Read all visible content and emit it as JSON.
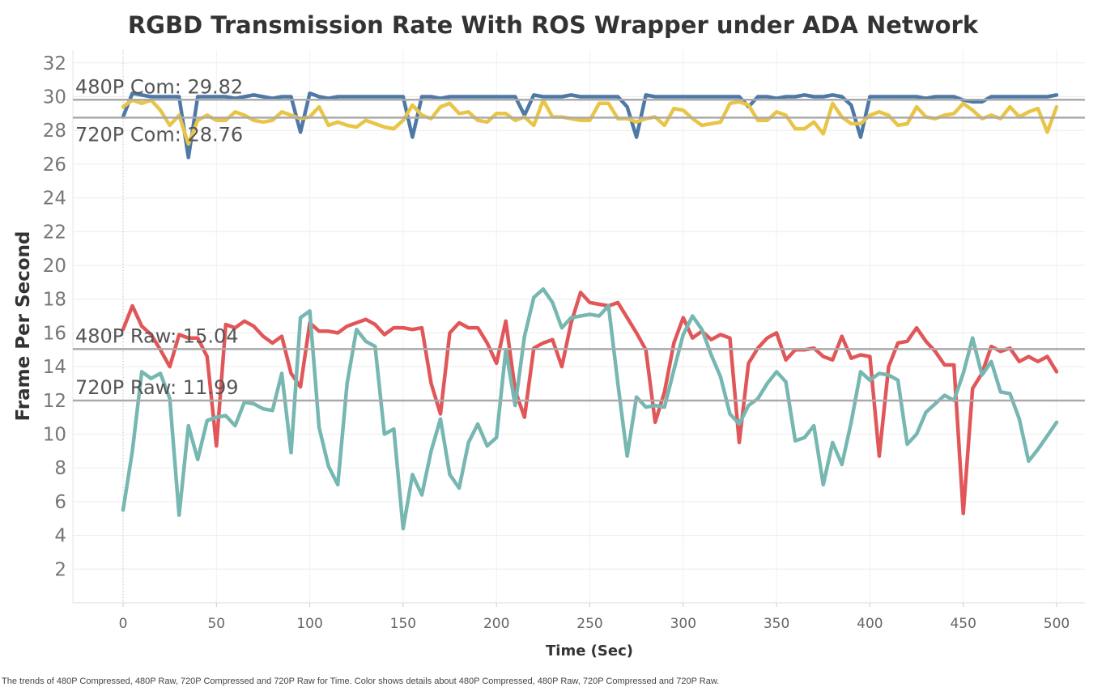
{
  "chart_data": {
    "type": "line",
    "title": "RGBD Transmission Rate With ROS Wrapper under ADA Network",
    "xlabel": "Time (Sec)",
    "ylabel": "Frame Per Second",
    "xlim": [
      -30,
      515
    ],
    "ylim": [
      0,
      33
    ],
    "xticks": [
      0,
      50,
      100,
      150,
      200,
      250,
      300,
      350,
      400,
      450,
      500
    ],
    "yticks": [
      2,
      4,
      6,
      8,
      10,
      12,
      14,
      16,
      18,
      20,
      22,
      24,
      26,
      28,
      30,
      32
    ],
    "grid": true,
    "legend": "none",
    "footer": "The trends of 480P Compressed, 480P Raw, 720P Compressed and 720P Raw for Time.  Color shows details about 480P Compressed, 480P Raw, 720P Compressed and 720P Raw.",
    "reference_lines": [
      {
        "label": "480P Com: 29.82",
        "value": 29.82,
        "label_position": "above"
      },
      {
        "label": "720P Com: 28.76",
        "value": 28.76,
        "label_position": "below"
      },
      {
        "label": "480P Raw: 15.04",
        "value": 15.04,
        "label_position": "above"
      },
      {
        "label": "720P Raw: 11.99",
        "value": 11.99,
        "label_position": "above"
      }
    ],
    "x": [
      0,
      5,
      10,
      15,
      20,
      25,
      30,
      35,
      40,
      45,
      50,
      55,
      60,
      65,
      70,
      75,
      80,
      85,
      90,
      95,
      100,
      105,
      110,
      115,
      120,
      125,
      130,
      135,
      140,
      145,
      150,
      155,
      160,
      165,
      170,
      175,
      180,
      185,
      190,
      195,
      200,
      205,
      210,
      215,
      220,
      225,
      230,
      235,
      240,
      245,
      250,
      255,
      260,
      265,
      270,
      275,
      280,
      285,
      290,
      295,
      300,
      305,
      310,
      315,
      320,
      325,
      330,
      335,
      340,
      345,
      350,
      355,
      360,
      365,
      370,
      375,
      380,
      385,
      390,
      395,
      400,
      405,
      410,
      415,
      420,
      425,
      430,
      435,
      440,
      445,
      450,
      455,
      460,
      465,
      470,
      475,
      480,
      485,
      490,
      495,
      500
    ],
    "series": [
      {
        "color": "#4e79a7",
        "values": [
          28.8,
          30.2,
          30.1,
          30.0,
          30.0,
          30.0,
          30.0,
          26.4,
          30.0,
          30.0,
          30.0,
          30.0,
          29.9,
          30.0,
          30.1,
          30.0,
          29.9,
          30.0,
          30.0,
          27.9,
          30.2,
          30.0,
          29.9,
          30.0,
          30.0,
          30.0,
          30.0,
          30.0,
          30.0,
          30.0,
          30.0,
          27.6,
          30.0,
          30.0,
          29.9,
          30.0,
          30.0,
          30.0,
          30.0,
          30.0,
          30.0,
          30.0,
          30.0,
          28.9,
          30.1,
          30.0,
          30.0,
          30.0,
          30.1,
          30.0,
          30.0,
          30.0,
          30.0,
          30.0,
          29.4,
          27.6,
          30.1,
          30.0,
          30.0,
          30.0,
          30.0,
          30.0,
          30.0,
          30.0,
          30.0,
          30.0,
          30.0,
          29.4,
          30.0,
          30.0,
          29.9,
          30.0,
          30.0,
          30.1,
          30.0,
          30.0,
          30.1,
          30.0,
          29.5,
          27.6,
          30.0,
          30.0,
          30.0,
          30.0,
          30.0,
          30.0,
          29.9,
          30.0,
          30.0,
          30.0,
          29.8,
          29.7,
          29.7,
          30.0,
          30.0,
          30.0,
          30.0,
          30.0,
          30.0,
          30.0,
          30.1
        ]
      },
      {
        "color": "#e8c547",
        "values": [
          29.4,
          29.8,
          29.6,
          29.8,
          29.2,
          28.3,
          28.9,
          27.2,
          28.6,
          28.9,
          28.6,
          28.6,
          29.1,
          28.9,
          28.6,
          28.5,
          28.6,
          29.1,
          28.9,
          28.7,
          28.8,
          29.4,
          28.3,
          28.5,
          28.3,
          28.2,
          28.6,
          28.4,
          28.2,
          28.1,
          28.6,
          29.5,
          28.9,
          28.7,
          29.4,
          29.6,
          29.0,
          29.1,
          28.6,
          28.5,
          29.0,
          29.0,
          28.6,
          28.8,
          28.3,
          29.8,
          28.8,
          28.8,
          28.7,
          28.6,
          28.6,
          29.6,
          29.6,
          28.7,
          28.7,
          28.5,
          28.7,
          28.8,
          28.3,
          29.3,
          29.2,
          28.7,
          28.3,
          28.4,
          28.5,
          29.6,
          29.7,
          29.5,
          28.6,
          28.6,
          29.1,
          28.9,
          28.1,
          28.1,
          28.5,
          27.8,
          29.6,
          28.8,
          28.4,
          28.4,
          28.9,
          29.1,
          28.9,
          28.3,
          28.4,
          29.4,
          28.8,
          28.7,
          28.9,
          29.0,
          29.6,
          29.2,
          28.7,
          28.9,
          28.7,
          29.4,
          28.8,
          29.1,
          29.3,
          27.9,
          29.4
        ]
      },
      {
        "color": "#e15759",
        "values": [
          16.2,
          17.6,
          16.4,
          15.9,
          15.0,
          14.0,
          15.9,
          15.7,
          15.7,
          14.6,
          9.3,
          16.5,
          16.3,
          16.7,
          16.4,
          15.8,
          15.4,
          15.8,
          13.6,
          12.8,
          16.6,
          16.1,
          16.1,
          16.0,
          16.4,
          16.6,
          16.8,
          16.5,
          15.9,
          16.3,
          16.3,
          16.2,
          16.3,
          13.0,
          11.2,
          16.0,
          16.6,
          16.3,
          16.3,
          15.4,
          14.2,
          16.7,
          12.6,
          11.0,
          15.1,
          15.4,
          15.6,
          14.0,
          16.6,
          18.4,
          17.8,
          17.7,
          17.6,
          17.8,
          16.9,
          16.0,
          15.0,
          10.7,
          12.5,
          15.4,
          16.9,
          15.7,
          16.1,
          15.6,
          15.9,
          15.7,
          9.5,
          14.2,
          15.1,
          15.7,
          16.0,
          14.4,
          15.0,
          15.0,
          15.1,
          14.6,
          14.4,
          15.8,
          14.5,
          14.7,
          14.6,
          8.7,
          14.0,
          15.4,
          15.5,
          16.3,
          15.5,
          14.9,
          14.1,
          14.1,
          5.3,
          12.7,
          13.6,
          15.2,
          14.9,
          15.1,
          14.3,
          14.6,
          14.3,
          14.6,
          13.7
        ]
      },
      {
        "color": "#76b7b2",
        "values": [
          5.5,
          9.0,
          13.7,
          13.3,
          13.6,
          12.1,
          5.2,
          10.5,
          8.5,
          10.8,
          11.0,
          11.1,
          10.5,
          11.9,
          11.8,
          11.5,
          11.4,
          13.6,
          8.9,
          16.9,
          17.3,
          10.4,
          8.1,
          7.0,
          13.0,
          16.2,
          15.5,
          15.2,
          10.0,
          10.3,
          4.4,
          7.6,
          6.4,
          9.0,
          10.9,
          7.6,
          6.8,
          9.5,
          10.6,
          9.3,
          9.8,
          15.0,
          11.7,
          15.8,
          18.1,
          18.6,
          17.8,
          16.3,
          16.9,
          17.0,
          17.1,
          17.0,
          17.6,
          13.0,
          8.7,
          12.2,
          11.6,
          11.7,
          11.6,
          13.8,
          15.9,
          17.0,
          16.2,
          14.7,
          13.4,
          11.2,
          10.6,
          11.7,
          12.1,
          13.0,
          13.7,
          13.1,
          9.6,
          9.8,
          10.5,
          7.0,
          9.5,
          8.2,
          10.7,
          13.7,
          13.2,
          13.6,
          13.5,
          13.2,
          9.4,
          10.0,
          11.3,
          11.8,
          12.3,
          12.0,
          13.6,
          15.7,
          13.5,
          14.3,
          12.5,
          12.4,
          10.9,
          8.4,
          9.1,
          9.9,
          10.7
        ]
      }
    ]
  }
}
